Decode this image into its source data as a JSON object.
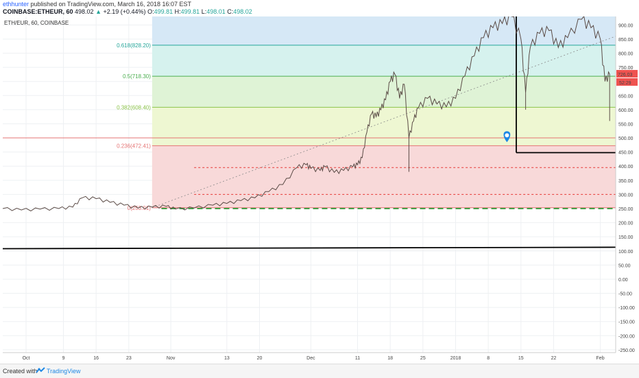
{
  "header": {
    "author": "ethhunter",
    "published": "published on TradingView.com, March 16, 2018 16:07 EST",
    "symbol": "COINBASE:ETHEUR, 60",
    "last": "498.02",
    "arrow": "▲",
    "change": "+2.19 (+0.44%)",
    "o_label": "O:",
    "o": "499.81",
    "h_label": "H:",
    "h": "499.81",
    "l_label": "L:",
    "l": "498.01",
    "c_label": "C:",
    "c": "498.02"
  },
  "legend": {
    "symbol": "ETH/EUR, 60, COINBASE"
  },
  "footer": {
    "created": "Created with",
    "brand": "TradingView",
    "logo_icon": "tradingview-logo-icon"
  },
  "chart_data": {
    "type": "line",
    "series_kind": "candlestick (approximated as price line)",
    "ylim": [
      -260,
      930
    ],
    "y_ticks": [
      900,
      850,
      800,
      750,
      700,
      650,
      600,
      550,
      500,
      450,
      400,
      350,
      300,
      250,
      200,
      150,
      100,
      50,
      "0.00",
      -50,
      -100,
      -150,
      -200,
      -250
    ],
    "y_tick_labels": [
      "900.00",
      "850.00",
      "800.00",
      "750.00",
      "700.00",
      "650.00",
      "600.00",
      "550.00",
      "500.00",
      "450.00",
      "400.00",
      "350.00",
      "300.00",
      "250.00",
      "200.00",
      "150.00",
      "100.00",
      "50.00",
      "0.00",
      "-50.00",
      "-100.00",
      "-150.00",
      "-200.00",
      "-250.00"
    ],
    "x_ticks": [
      {
        "label": "Oct",
        "date": "2017-10-01"
      },
      {
        "label": "9",
        "date": "2017-10-09"
      },
      {
        "label": "16",
        "date": "2017-10-16"
      },
      {
        "label": "23",
        "date": "2017-10-23"
      },
      {
        "label": "Nov",
        "date": "2017-11-01"
      },
      {
        "label": "13",
        "date": "2017-11-13"
      },
      {
        "label": "20",
        "date": "2017-11-20"
      },
      {
        "label": "Dec",
        "date": "2017-12-01"
      },
      {
        "label": "11",
        "date": "2017-12-11"
      },
      {
        "label": "18",
        "date": "2017-12-18"
      },
      {
        "label": "25",
        "date": "2017-12-25"
      },
      {
        "label": "2018",
        "date": "2018-01-01"
      },
      {
        "label": "8",
        "date": "2018-01-08"
      },
      {
        "label": "15",
        "date": "2018-01-15"
      },
      {
        "label": "22",
        "date": "2018-01-22"
      },
      {
        "label": "Feb",
        "date": "2018-02-01"
      }
    ],
    "price_series": [
      [
        "2017-09-26",
        250
      ],
      [
        "2017-09-30",
        245
      ],
      [
        "2017-10-04",
        248
      ],
      [
        "2017-10-08",
        250
      ],
      [
        "2017-10-11",
        255
      ],
      [
        "2017-10-13",
        288
      ],
      [
        "2017-10-16",
        285
      ],
      [
        "2017-10-19",
        272
      ],
      [
        "2017-10-22",
        262
      ],
      [
        "2017-10-25",
        252
      ],
      [
        "2017-10-28",
        255
      ],
      [
        "2017-10-31",
        258
      ],
      [
        "2017-11-02",
        248
      ],
      [
        "2017-11-06",
        252
      ],
      [
        "2017-11-10",
        262
      ],
      [
        "2017-11-13",
        268
      ],
      [
        "2017-11-16",
        278
      ],
      [
        "2017-11-19",
        288
      ],
      [
        "2017-11-22",
        310
      ],
      [
        "2017-11-25",
        335
      ],
      [
        "2017-11-28",
        395
      ],
      [
        "2017-11-30",
        405
      ],
      [
        "2017-12-01",
        392
      ],
      [
        "2017-12-03",
        385
      ],
      [
        "2017-12-04",
        398
      ],
      [
        "2017-12-06",
        378
      ],
      [
        "2017-12-08",
        385
      ],
      [
        "2017-12-10",
        398
      ],
      [
        "2017-12-11",
        405
      ],
      [
        "2017-12-12",
        430
      ],
      [
        "2017-12-13",
        520
      ],
      [
        "2017-12-14",
        585
      ],
      [
        "2017-12-15",
        575
      ],
      [
        "2017-12-16",
        600
      ],
      [
        "2017-12-17",
        635
      ],
      [
        "2017-12-18",
        700
      ],
      [
        "2017-12-19",
        725
      ],
      [
        "2017-12-20",
        640
      ],
      [
        "2017-12-21",
        690
      ],
      [
        "2017-12-22",
        500
      ],
      [
        "2017-12-23",
        560
      ],
      [
        "2017-12-24",
        605
      ],
      [
        "2017-12-26",
        640
      ],
      [
        "2017-12-28",
        620
      ],
      [
        "2017-12-30",
        610
      ],
      [
        "2018-01-01",
        640
      ],
      [
        "2018-01-03",
        720
      ],
      [
        "2018-01-05",
        790
      ],
      [
        "2018-01-07",
        855
      ],
      [
        "2018-01-09",
        890
      ],
      [
        "2018-01-11",
        905
      ],
      [
        "2018-01-13",
        930
      ],
      [
        "2018-01-15",
        850
      ],
      [
        "2018-01-16",
        660
      ],
      [
        "2018-01-17",
        820
      ],
      [
        "2018-01-19",
        870
      ],
      [
        "2018-01-21",
        880
      ],
      [
        "2018-01-23",
        820
      ],
      [
        "2018-01-25",
        855
      ],
      [
        "2018-01-28",
        920
      ],
      [
        "2018-01-30",
        890
      ],
      [
        "2018-02-01",
        850
      ],
      [
        "2018-02-02",
        700
      ],
      [
        "2018-02-03",
        726
      ]
    ],
    "price_low_wicks": [
      [
        "2017-12-22",
        380
      ],
      [
        "2018-01-16",
        600
      ],
      [
        "2018-02-03",
        560
      ]
    ],
    "price_label": "726.03",
    "price_label_value": 726.03,
    "second_label": "52:29",
    "horizontal_line_value": 500,
    "support_line_value": 250,
    "baseline_line": {
      "start_value": 108,
      "end_value": 113
    },
    "fib_retracement": {
      "start_date": "2017-10-28",
      "levels": [
        {
          "ratio_label": "0.618(828.20)",
          "value": 828.2,
          "color": "#26a69a",
          "fill": "#d6f2ee"
        },
        {
          "ratio_label": "0.5(718.30)",
          "value": 718.3,
          "color": "#4caf50",
          "fill": "#dff3d6"
        },
        {
          "ratio_label": "0.382(608.40)",
          "value": 608.4,
          "color": "#8bc34a",
          "fill": "#eef7d2"
        },
        {
          "ratio_label": "0.236(472.41)",
          "value": 472.41,
          "color": "#e57373",
          "fill": "#faefd4"
        },
        {
          "ratio_label": "0(253.01)",
          "value": 253.01,
          "color": "#e57373",
          "fill": "#f8d9d9"
        }
      ],
      "top_fill": "#d6e8f6",
      "dashed_red_levels": [
        395,
        300
      ]
    },
    "annotation_lines": {
      "vertical_date": "2018-01-14",
      "vertical_from": 930,
      "vertical_to": 448,
      "horizontal_to_value": 448
    },
    "marker": {
      "icon": "location-pin-icon",
      "date": "2018-01-12",
      "value": 485
    }
  }
}
